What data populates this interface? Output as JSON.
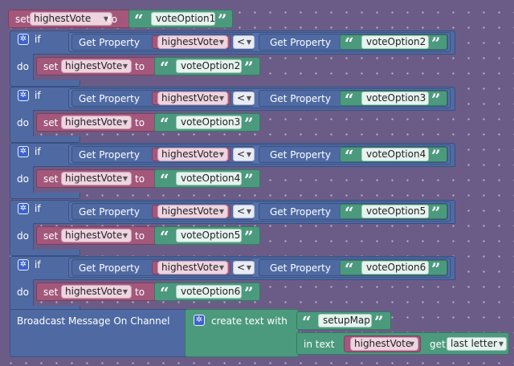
{
  "blocks": {
    "top_set": {
      "set": "set",
      "variable": "highestVote",
      "to": "to",
      "value": "voteOption1"
    },
    "ifs": [
      {
        "if": "if",
        "get_property": "Get Property",
        "variable": "highestVote",
        "operator": "<",
        "get_property_2": "Get Property",
        "compare_value": "voteOption2",
        "do": "do",
        "set": "set",
        "set_variable": "highestVote",
        "to": "to",
        "set_value": "voteOption2"
      },
      {
        "if": "if",
        "get_property": "Get Property",
        "variable": "highestVote",
        "operator": "<",
        "get_property_2": "Get Property",
        "compare_value": "voteOption3",
        "do": "do",
        "set": "set",
        "set_variable": "highestVote",
        "to": "to",
        "set_value": "voteOption3"
      },
      {
        "if": "if",
        "get_property": "Get Property",
        "variable": "highestVote",
        "operator": "<",
        "get_property_2": "Get Property",
        "compare_value": "voteOption4",
        "do": "do",
        "set": "set",
        "set_variable": "highestVote",
        "to": "to",
        "set_value": "voteOption4"
      },
      {
        "if": "if",
        "get_property": "Get Property",
        "variable": "highestVote",
        "operator": "<",
        "get_property_2": "Get Property",
        "compare_value": "voteOption5",
        "do": "do",
        "set": "set",
        "set_variable": "highestVote",
        "to": "to",
        "set_value": "voteOption5"
      },
      {
        "if": "if",
        "get_property": "Get Property",
        "variable": "highestVote",
        "operator": "<",
        "get_property_2": "Get Property",
        "compare_value": "voteOption6",
        "do": "do",
        "set": "set",
        "set_variable": "highestVote",
        "to": "to",
        "set_value": "voteOption6"
      }
    ],
    "broadcast": {
      "label": "Broadcast Message On Channel",
      "create_text": "create text with",
      "text_value": "setupMap",
      "in_text": "in text",
      "in_text_variable": "highestVote",
      "get": "get",
      "get_option": "last letter"
    }
  },
  "icons": {
    "gear": "gear-icon",
    "dropdown": "dropdown-arrow-icon",
    "quote_open": "quote-open-icon",
    "quote_close": "quote-close-icon"
  },
  "colors": {
    "background": "#6b5c87",
    "variable_block": "#a3587b",
    "control_block": "#4f6aa3",
    "text_block": "#4c9a7e",
    "variable_pill": "#efd4e0",
    "text_pill": "#e6f3ee"
  }
}
